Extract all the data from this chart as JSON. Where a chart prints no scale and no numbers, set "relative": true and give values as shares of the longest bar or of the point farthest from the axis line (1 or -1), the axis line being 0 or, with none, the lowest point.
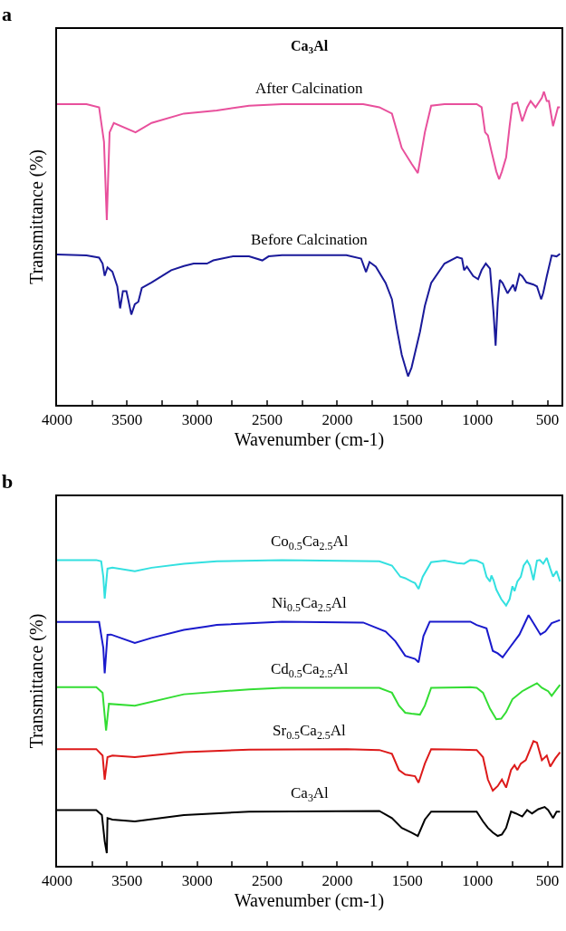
{
  "chart_data": [
    {
      "type": "line",
      "title": "a",
      "subtitle": "Ca$_{3}$Al",
      "xlabel": "Wavenumber (cm-1)",
      "ylabel": "Transmittance (%)",
      "relative": true,
      "legend": false,
      "tick_labels": "x",
      "marker": "none",
      "line_style": "solid",
      "xlim": [
        4000,
        400
      ],
      "xticks": [
        4000,
        {
          "value": 3750,
          "label": null
        },
        3500,
        {
          "value": 3250,
          "label": null
        },
        3000,
        {
          "value": 2750,
          "label": null
        },
        2500,
        {
          "value": 2250,
          "label": null
        },
        2000,
        {
          "value": 1750,
          "label": null
        },
        1500,
        {
          "value": 1250,
          "label": null
        },
        1000,
        {
          "value": 750,
          "label": null
        },
        500
      ],
      "series": [
        {
          "name": "After Calcination",
          "color": "#e8509c",
          "x": [
            4000,
            3790,
            3700,
            3665,
            3645,
            3625,
            3595,
            3440,
            3325,
            3095,
            2860,
            2630,
            2395,
            1815,
            1700,
            1610,
            1540,
            1470,
            1425,
            1375,
            1330,
            1235,
            1005,
            970,
            945,
            925,
            900,
            865,
            845,
            825,
            795,
            770,
            750,
            715,
            680,
            645,
            620,
            585,
            540,
            525,
            505,
            490,
            460,
            425,
            410
          ],
          "values": [
            0.96,
            0.96,
            0.95,
            0.84,
            0.59,
            0.87,
            0.9,
            0.87,
            0.9,
            0.93,
            0.94,
            0.955,
            0.96,
            0.96,
            0.95,
            0.93,
            0.82,
            0.77,
            0.74,
            0.87,
            0.955,
            0.96,
            0.96,
            0.95,
            0.87,
            0.86,
            0.81,
            0.745,
            0.72,
            0.745,
            0.79,
            0.89,
            0.96,
            0.965,
            0.905,
            0.95,
            0.97,
            0.95,
            0.98,
            1.0,
            0.97,
            0.97,
            0.89,
            0.95,
            0.95
          ]
        },
        {
          "name": "Before Calcination",
          "color": "#1a1a9a",
          "x": [
            4000,
            3790,
            3700,
            3675,
            3660,
            3640,
            3605,
            3570,
            3550,
            3530,
            3505,
            3490,
            3470,
            3445,
            3420,
            3395,
            3325,
            3255,
            3185,
            3095,
            3025,
            2930,
            2885,
            2745,
            2630,
            2535,
            2490,
            2395,
            1935,
            1830,
            1795,
            1770,
            1725,
            1655,
            1610,
            1575,
            1540,
            1495,
            1470,
            1410,
            1375,
            1330,
            1235,
            1145,
            1110,
            1095,
            1075,
            1030,
            995,
            970,
            940,
            910,
            885,
            870,
            855,
            840,
            820,
            785,
            745,
            730,
            700,
            680,
            650,
            600,
            575,
            545,
            530,
            505,
            470,
            435,
            410
          ],
          "values": [
            0.48,
            0.477,
            0.47,
            0.451,
            0.412,
            0.439,
            0.425,
            0.378,
            0.308,
            0.363,
            0.363,
            0.332,
            0.288,
            0.321,
            0.329,
            0.373,
            0.391,
            0.41,
            0.43,
            0.443,
            0.451,
            0.451,
            0.461,
            0.474,
            0.474,
            0.461,
            0.474,
            0.478,
            0.478,
            0.467,
            0.424,
            0.456,
            0.441,
            0.389,
            0.337,
            0.243,
            0.16,
            0.091,
            0.119,
            0.233,
            0.316,
            0.389,
            0.451,
            0.472,
            0.467,
            0.43,
            0.441,
            0.411,
            0.401,
            0.43,
            0.451,
            0.435,
            0.295,
            0.189,
            0.326,
            0.399,
            0.389,
            0.356,
            0.384,
            0.363,
            0.418,
            0.411,
            0.391,
            0.384,
            0.378,
            0.337,
            0.358,
            0.41,
            0.477,
            0.474,
            0.482
          ]
        }
      ]
    },
    {
      "type": "line",
      "title": "b",
      "xlabel": "Wavenumber (cm-1)",
      "ylabel": "Transmittance (%)",
      "relative": true,
      "legend": false,
      "tick_labels": "x",
      "marker": "none",
      "line_style": "solid",
      "xlim": [
        4000,
        400
      ],
      "xticks": [
        4000,
        {
          "value": 3750,
          "label": null
        },
        3500,
        {
          "value": 3250,
          "label": null
        },
        3000,
        {
          "value": 2750,
          "label": null
        },
        2500,
        {
          "value": 2250,
          "label": null
        },
        2000,
        {
          "value": 1750,
          "label": null
        },
        1500,
        {
          "value": 1250,
          "label": null
        },
        1000,
        {
          "value": 750,
          "label": null
        },
        500
      ],
      "series": [
        {
          "name": "Co$_{0.5}$Ca$_{2.5}$Al",
          "color": "#33e0e0",
          "x": [
            4000,
            3720,
            3685,
            3670,
            3660,
            3640,
            3605,
            3445,
            3325,
            3095,
            2860,
            2395,
            1700,
            1610,
            1550,
            1515,
            1470,
            1445,
            1420,
            1390,
            1330,
            1235,
            1145,
            1095,
            1050,
            1005,
            960,
            935,
            910,
            900,
            885,
            865,
            830,
            795,
            770,
            750,
            735,
            715,
            690,
            670,
            645,
            625,
            600,
            575,
            555,
            530,
            505,
            480,
            460,
            435,
            410
          ],
          "values": [
            0.993,
            0.993,
            0.989,
            0.939,
            0.868,
            0.965,
            0.968,
            0.957,
            0.968,
            0.981,
            0.989,
            0.993,
            0.989,
            0.975,
            0.939,
            0.934,
            0.923,
            0.918,
            0.899,
            0.939,
            0.986,
            0.991,
            0.983,
            0.981,
            0.993,
            0.991,
            0.981,
            0.939,
            0.923,
            0.943,
            0.928,
            0.897,
            0.866,
            0.845,
            0.866,
            0.908,
            0.892,
            0.923,
            0.939,
            0.975,
            0.991,
            0.975,
            0.928,
            0.991,
            0.993,
            0.981,
            1.0,
            0.965,
            0.939,
            0.957,
            0.923
          ]
        },
        {
          "name": "Ni$_{0.5}$Ca$_{2.5}$Al",
          "color": "#1a1acc",
          "x": [
            4000,
            3700,
            3670,
            3660,
            3640,
            3615,
            3445,
            3325,
            3095,
            2930,
            2860,
            2395,
            1815,
            1655,
            1585,
            1515,
            1445,
            1420,
            1385,
            1340,
            1050,
            1005,
            935,
            890,
            855,
            820,
            770,
            700,
            635,
            600,
            550,
            515,
            470,
            410
          ],
          "values": [
            0.792,
            0.792,
            0.708,
            0.625,
            0.75,
            0.751,
            0.724,
            0.74,
            0.766,
            0.777,
            0.782,
            0.793,
            0.79,
            0.761,
            0.729,
            0.682,
            0.672,
            0.661,
            0.746,
            0.793,
            0.793,
            0.782,
            0.771,
            0.698,
            0.69,
            0.677,
            0.708,
            0.751,
            0.814,
            0.788,
            0.751,
            0.761,
            0.788,
            0.798
          ]
        },
        {
          "name": "Cd$_{0.5}$Ca$_{2.5}$Al",
          "color": "#33dd33",
          "x": [
            4000,
            3720,
            3675,
            3650,
            3630,
            3445,
            3095,
            2630,
            2395,
            1700,
            1610,
            1560,
            1515,
            1470,
            1410,
            1375,
            1330,
            1050,
            1005,
            960,
            910,
            865,
            830,
            795,
            750,
            680,
            635,
            575,
            540,
            495,
            470,
            435,
            410
          ],
          "values": [
            0.58,
            0.58,
            0.562,
            0.439,
            0.526,
            0.52,
            0.557,
            0.573,
            0.578,
            0.578,
            0.562,
            0.52,
            0.497,
            0.494,
            0.491,
            0.52,
            0.578,
            0.58,
            0.578,
            0.562,
            0.51,
            0.476,
            0.478,
            0.499,
            0.541,
            0.567,
            0.578,
            0.593,
            0.578,
            0.567,
            0.552,
            0.573,
            0.588
          ]
        },
        {
          "name": "Sr$_{0.5}$Ca$_{2.5}$Al",
          "color": "#dd1a1a",
          "x": [
            4000,
            3720,
            3675,
            3660,
            3640,
            3605,
            3445,
            3095,
            2630,
            1933,
            1700,
            1610,
            1560,
            1515,
            1445,
            1420,
            1375,
            1330,
            1005,
            960,
            925,
            890,
            855,
            825,
            795,
            760,
            735,
            715,
            690,
            655,
            600,
            575,
            540,
            505,
            480,
            445,
            410
          ],
          "values": [
            0.379,
            0.379,
            0.358,
            0.28,
            0.353,
            0.358,
            0.353,
            0.369,
            0.377,
            0.379,
            0.376,
            0.364,
            0.311,
            0.296,
            0.291,
            0.27,
            0.332,
            0.379,
            0.376,
            0.353,
            0.28,
            0.244,
            0.259,
            0.28,
            0.254,
            0.311,
            0.327,
            0.311,
            0.332,
            0.343,
            0.405,
            0.4,
            0.343,
            0.358,
            0.322,
            0.348,
            0.369
          ]
        },
        {
          "name": "Ca$_{3}$Al",
          "color": "#000000",
          "x": [
            4000,
            3720,
            3680,
            3660,
            3645,
            3640,
            3605,
            3445,
            3095,
            2630,
            1700,
            1610,
            1540,
            1470,
            1425,
            1375,
            1330,
            1005,
            960,
            925,
            890,
            855,
            825,
            795,
            760,
            725,
            680,
            645,
            610,
            565,
            520,
            495,
            460,
            435,
            410
          ],
          "values": [
            0.181,
            0.181,
            0.165,
            0.08,
            0.041,
            0.155,
            0.15,
            0.144,
            0.165,
            0.176,
            0.178,
            0.155,
            0.123,
            0.108,
            0.097,
            0.15,
            0.176,
            0.176,
            0.144,
            0.123,
            0.108,
            0.097,
            0.102,
            0.123,
            0.176,
            0.17,
            0.16,
            0.181,
            0.17,
            0.184,
            0.191,
            0.181,
            0.155,
            0.176,
            0.176
          ]
        }
      ]
    }
  ]
}
